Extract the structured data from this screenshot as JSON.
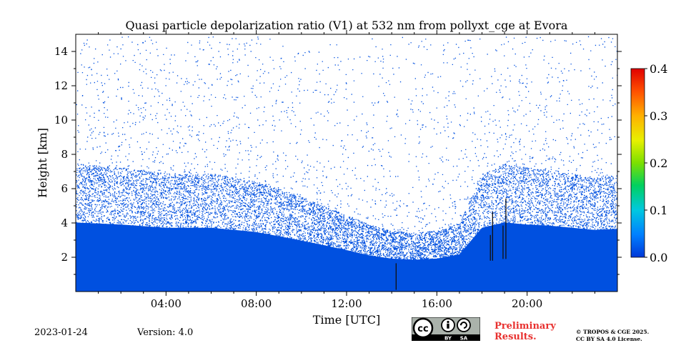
{
  "chart_data": {
    "type": "heatmap",
    "title": "Quasi particle depolarization ratio (V1) at 532 nm from pollyxt_cge at Evora",
    "xlabel": "Time [UTC]",
    "ylabel": "Height [km]",
    "xlim_hours": [
      0,
      24
    ],
    "ylim_km": [
      0,
      15
    ],
    "x_ticks": [
      {
        "hour": 4,
        "label": "04:00"
      },
      {
        "hour": 8,
        "label": "08:00"
      },
      {
        "hour": 12,
        "label": "12:00"
      },
      {
        "hour": 16,
        "label": "16:00"
      },
      {
        "hour": 20,
        "label": "20:00"
      }
    ],
    "y_ticks": [
      {
        "km": 2,
        "label": "2"
      },
      {
        "km": 4,
        "label": "4"
      },
      {
        "km": 6,
        "label": "6"
      },
      {
        "km": 8,
        "label": "8"
      },
      {
        "km": 10,
        "label": "10"
      },
      {
        "km": 12,
        "label": "12"
      },
      {
        "km": 14,
        "label": "14"
      }
    ],
    "colorbar": {
      "min": 0.0,
      "max": 0.4,
      "ticks": [
        {
          "value": 0.0,
          "label": "0.0"
        },
        {
          "value": 0.1,
          "label": "0.1"
        },
        {
          "value": 0.2,
          "label": "0.2"
        },
        {
          "value": 0.3,
          "label": "0.3"
        },
        {
          "value": 0.4,
          "label": "0.4"
        }
      ],
      "colormap": [
        "#0000b0",
        "#0060ff",
        "#00c0ff",
        "#00e080",
        "#80ff00",
        "#ffff00",
        "#ffa000",
        "#ff3000",
        "#c00000"
      ]
    },
    "dominant_value": 0.0,
    "dominant_color": "#0050e0",
    "layer_top_profile": {
      "hour": [
        0,
        2,
        4,
        6,
        8,
        10,
        12,
        13,
        14,
        15,
        16,
        17,
        18,
        19,
        20,
        21,
        22,
        23,
        24
      ],
      "top_km": [
        6.5,
        6.3,
        6.0,
        6.0,
        5.6,
        4.8,
        3.9,
        3.4,
        3.1,
        3.0,
        3.1,
        3.5,
        6.0,
        6.5,
        6.3,
        6.2,
        6.0,
        5.8,
        5.9
      ]
    },
    "gaps": [
      {
        "start_hour": 14.15,
        "end_hour": 14.2,
        "min_km": 0.1,
        "max_km": 3.0
      },
      {
        "start_hour": 18.3,
        "end_hour": 18.5,
        "min_km": 1.8,
        "max_km": 6.0
      },
      {
        "start_hour": 18.85,
        "end_hour": 19.1,
        "min_km": 1.9,
        "max_km": 7.0
      }
    ]
  },
  "footer": {
    "date": "2023-01-24",
    "version": "Version: 4.0",
    "preliminary_line1": "Preliminary",
    "preliminary_line2": "Results.",
    "license_line1": "© TROPOS & CGE 2025.",
    "license_line2": "CC BY SA 4.0 License.",
    "cc_badge_text": [
      "BY",
      "SA"
    ]
  }
}
